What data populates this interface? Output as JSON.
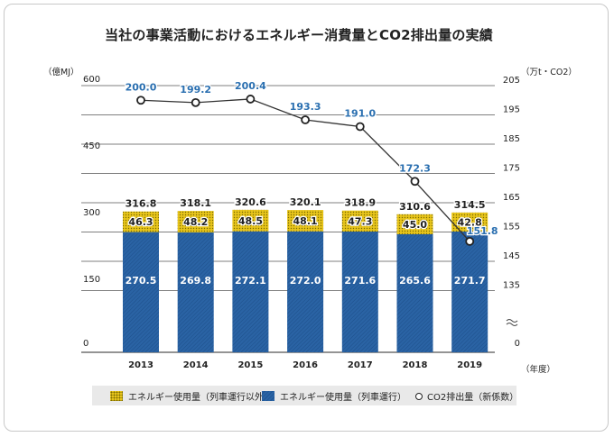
{
  "title": "当社の事業活動におけるエネルギー消費量とCO2排出量の実績",
  "units": {
    "left": "（億MJ）",
    "right": "（万t・CO2）",
    "x": "（年度）"
  },
  "legend": {
    "yellow": "エネルギー使用量（列車運行以外）",
    "blue": "エネルギー使用量（列車運行）",
    "line": "CO2排出量（新係数）"
  },
  "colors": {
    "blue": "#2a63a4",
    "yellow": "#e8c51b",
    "line_label": "#2a6fb0",
    "axis": "#222222"
  },
  "chart_data": {
    "type": "bar",
    "stacked": true,
    "categories": [
      "2013",
      "2014",
      "2015",
      "2016",
      "2017",
      "2018",
      "2019"
    ],
    "series": [
      {
        "name": "エネルギー使用量（列車運行）",
        "values": [
          270.5,
          269.8,
          272.1,
          272.0,
          271.6,
          265.6,
          271.7
        ]
      },
      {
        "name": "エネルギー使用量（列車運行以外）",
        "values": [
          46.3,
          48.2,
          48.5,
          48.1,
          47.3,
          45.0,
          42.8
        ]
      }
    ],
    "totals": [
      316.8,
      318.1,
      320.6,
      320.1,
      318.9,
      310.6,
      314.5
    ],
    "line_series": {
      "name": "CO2排出量（新係数）",
      "axis": "right",
      "values": [
        200.0,
        199.2,
        200.4,
        193.3,
        191.0,
        172.3,
        151.8
      ]
    },
    "left_ticks": [
      "600",
      "450",
      "300",
      "150",
      "0"
    ],
    "left_ylim": [
      0,
      600
    ],
    "right_ticks": [
      "205",
      "195",
      "185",
      "175",
      "165",
      "155",
      "145",
      "135",
      "0"
    ],
    "right_ylim_broken": [
      135,
      205
    ],
    "grid": true,
    "legend_position": "bottom"
  }
}
